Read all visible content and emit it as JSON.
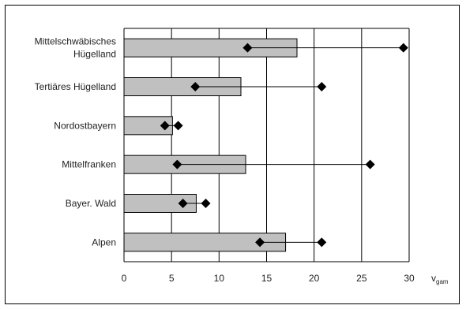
{
  "chart_data": {
    "type": "bar",
    "orientation": "horizontal",
    "categories": [
      "Mittelschwäbisches\nHügelland",
      "Tertiäres Hügelland",
      "Nordostbayern",
      "Mittelfranken",
      "Bayer. Wald",
      "Alpen"
    ],
    "series": [
      {
        "values": [
          18.2,
          12.3,
          5.1,
          12.8,
          7.6,
          17.0
        ]
      },
      {
        "values": [
          13.0,
          7.5,
          4.3,
          5.6,
          6.2,
          14.3
        ]
      },
      {
        "values": [
          29.4,
          20.8,
          5.7,
          25.9,
          8.6,
          20.8
        ]
      }
    ],
    "xlabel": "v",
    "xlabel_subscript": "gam",
    "xlim": [
      0,
      30
    ],
    "xticks": [
      0,
      5,
      10,
      15,
      20,
      25,
      30
    ],
    "grid": true,
    "colors": {
      "bar_fill": "#c0c0c0",
      "bar_stroke": "#000000",
      "marker": "#000000",
      "grid": "#000000"
    }
  }
}
